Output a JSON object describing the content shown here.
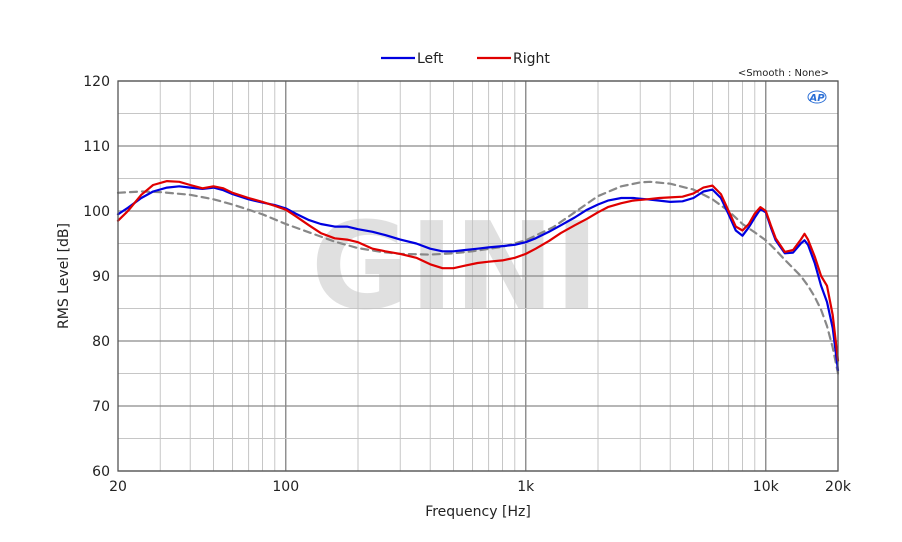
{
  "chart_data": {
    "type": "line",
    "xscale": "log",
    "xlabel": "Frequency [Hz]",
    "ylabel": "RMS Level [dB]",
    "xlim": [
      20,
      20000
    ],
    "ylim": [
      60,
      120
    ],
    "xticks": [
      {
        "value": 20,
        "label": "20"
      },
      {
        "value": 100,
        "label": "100"
      },
      {
        "value": 1000,
        "label": "1k"
      },
      {
        "value": 10000,
        "label": "10k"
      },
      {
        "value": 20000,
        "label": "20k"
      }
    ],
    "yticks": [
      60,
      70,
      80,
      90,
      100,
      110,
      120
    ],
    "grid": true,
    "legend_position": "top-center",
    "annotation": "<Smooth : None>",
    "logo_text": "AP",
    "watermark_text": "GINI",
    "series": [
      {
        "name": "Left",
        "color": "#0000e0",
        "style": "solid",
        "points": [
          [
            20,
            99.5
          ],
          [
            22,
            100.5
          ],
          [
            25,
            102
          ],
          [
            28,
            103
          ],
          [
            32,
            103.6
          ],
          [
            36,
            103.8
          ],
          [
            40,
            103.6
          ],
          [
            45,
            103.4
          ],
          [
            50,
            103.6
          ],
          [
            55,
            103.2
          ],
          [
            60,
            102.6
          ],
          [
            70,
            101.8
          ],
          [
            80,
            101.3
          ],
          [
            90,
            100.9
          ],
          [
            100,
            100.4
          ],
          [
            110,
            99.6
          ],
          [
            125,
            98.6
          ],
          [
            140,
            98
          ],
          [
            160,
            97.6
          ],
          [
            180,
            97.6
          ],
          [
            200,
            97.2
          ],
          [
            230,
            96.8
          ],
          [
            260,
            96.3
          ],
          [
            300,
            95.6
          ],
          [
            350,
            95
          ],
          [
            400,
            94.2
          ],
          [
            450,
            93.8
          ],
          [
            500,
            93.8
          ],
          [
            560,
            94
          ],
          [
            630,
            94.2
          ],
          [
            700,
            94.4
          ],
          [
            800,
            94.6
          ],
          [
            900,
            94.8
          ],
          [
            1000,
            95.2
          ],
          [
            1100,
            95.8
          ],
          [
            1250,
            96.8
          ],
          [
            1400,
            97.8
          ],
          [
            1600,
            99
          ],
          [
            1800,
            100.2
          ],
          [
            2000,
            101
          ],
          [
            2200,
            101.6
          ],
          [
            2500,
            102
          ],
          [
            2800,
            102
          ],
          [
            3200,
            101.8
          ],
          [
            3600,
            101.6
          ],
          [
            4000,
            101.4
          ],
          [
            4500,
            101.5
          ],
          [
            5000,
            102
          ],
          [
            5500,
            103
          ],
          [
            6000,
            103.3
          ],
          [
            6500,
            102
          ],
          [
            7000,
            99.5
          ],
          [
            7500,
            97
          ],
          [
            8000,
            96.2
          ],
          [
            8500,
            97.5
          ],
          [
            9000,
            99
          ],
          [
            9500,
            100.3
          ],
          [
            10000,
            99.8
          ],
          [
            10500,
            97.5
          ],
          [
            11000,
            95.5
          ],
          [
            12000,
            93.5
          ],
          [
            13000,
            93.6
          ],
          [
            14000,
            95
          ],
          [
            14500,
            95.5
          ],
          [
            15000,
            94.8
          ],
          [
            16000,
            92
          ],
          [
            17000,
            88.5
          ],
          [
            18000,
            86
          ],
          [
            19000,
            82
          ],
          [
            20000,
            75.5
          ]
        ]
      },
      {
        "name": "Right",
        "color": "#e00000",
        "style": "solid",
        "points": [
          [
            20,
            98.5
          ],
          [
            22,
            100
          ],
          [
            25,
            102.5
          ],
          [
            28,
            104
          ],
          [
            32,
            104.6
          ],
          [
            36,
            104.5
          ],
          [
            40,
            104
          ],
          [
            45,
            103.5
          ],
          [
            50,
            103.8
          ],
          [
            55,
            103.5
          ],
          [
            60,
            102.8
          ],
          [
            70,
            102
          ],
          [
            80,
            101.4
          ],
          [
            90,
            100.8
          ],
          [
            100,
            100.2
          ],
          [
            110,
            99.2
          ],
          [
            125,
            97.8
          ],
          [
            140,
            96.6
          ],
          [
            160,
            95.8
          ],
          [
            180,
            95.6
          ],
          [
            200,
            95.2
          ],
          [
            230,
            94.2
          ],
          [
            260,
            93.8
          ],
          [
            300,
            93.4
          ],
          [
            350,
            92.8
          ],
          [
            400,
            91.8
          ],
          [
            450,
            91.2
          ],
          [
            500,
            91.2
          ],
          [
            560,
            91.6
          ],
          [
            630,
            92
          ],
          [
            700,
            92.2
          ],
          [
            800,
            92.4
          ],
          [
            900,
            92.8
          ],
          [
            1000,
            93.4
          ],
          [
            1100,
            94.2
          ],
          [
            1250,
            95.4
          ],
          [
            1400,
            96.6
          ],
          [
            1600,
            97.8
          ],
          [
            1800,
            98.8
          ],
          [
            2000,
            99.8
          ],
          [
            2200,
            100.6
          ],
          [
            2500,
            101.2
          ],
          [
            2800,
            101.6
          ],
          [
            3200,
            101.8
          ],
          [
            3600,
            102
          ],
          [
            4000,
            102.1
          ],
          [
            4500,
            102.2
          ],
          [
            5000,
            102.7
          ],
          [
            5500,
            103.6
          ],
          [
            6000,
            103.9
          ],
          [
            6500,
            102.6
          ],
          [
            7000,
            100
          ],
          [
            7500,
            97.6
          ],
          [
            8000,
            97
          ],
          [
            8500,
            98
          ],
          [
            9000,
            99.6
          ],
          [
            9500,
            100.6
          ],
          [
            10000,
            100
          ],
          [
            10500,
            97.8
          ],
          [
            11000,
            95.8
          ],
          [
            12000,
            93.7
          ],
          [
            13000,
            94
          ],
          [
            14000,
            95.6
          ],
          [
            14500,
            96.5
          ],
          [
            15000,
            95.6
          ],
          [
            16000,
            93
          ],
          [
            17000,
            90
          ],
          [
            18000,
            88.5
          ],
          [
            19000,
            84
          ],
          [
            20000,
            77
          ]
        ]
      },
      {
        "name": "",
        "color": "#888888",
        "style": "dashed",
        "points": [
          [
            20,
            102.8
          ],
          [
            25,
            103
          ],
          [
            30,
            102.9
          ],
          [
            40,
            102.5
          ],
          [
            50,
            101.8
          ],
          [
            60,
            101
          ],
          [
            80,
            99.5
          ],
          [
            100,
            98
          ],
          [
            130,
            96.5
          ],
          [
            160,
            95.3
          ],
          [
            200,
            94.3
          ],
          [
            250,
            93.7
          ],
          [
            300,
            93.4
          ],
          [
            400,
            93.3
          ],
          [
            500,
            93.5
          ],
          [
            600,
            93.8
          ],
          [
            800,
            94.5
          ],
          [
            1000,
            95.5
          ],
          [
            1300,
            97.5
          ],
          [
            1600,
            99.8
          ],
          [
            2000,
            102.3
          ],
          [
            2500,
            103.8
          ],
          [
            3000,
            104.4
          ],
          [
            3300,
            104.5
          ],
          [
            4000,
            104.2
          ],
          [
            5000,
            103.3
          ],
          [
            6000,
            101.8
          ],
          [
            7000,
            100
          ],
          [
            8000,
            98
          ],
          [
            9000,
            96.7
          ],
          [
            10000,
            95.5
          ],
          [
            11000,
            94
          ],
          [
            12000,
            92.5
          ],
          [
            13000,
            91.2
          ],
          [
            14000,
            90
          ],
          [
            15000,
            88.5
          ],
          [
            16000,
            86.8
          ],
          [
            17000,
            84.8
          ],
          [
            18000,
            82.3
          ],
          [
            19000,
            79
          ],
          [
            20000,
            75
          ]
        ]
      }
    ]
  }
}
